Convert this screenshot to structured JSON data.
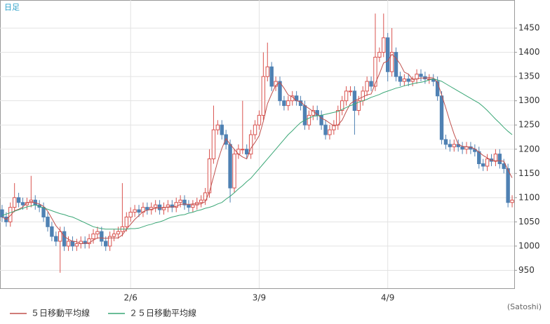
{
  "chart_data": {
    "type": "candlestick",
    "label": "日足",
    "unit_label": "(Satoshi)",
    "categories": [
      null,
      null,
      null,
      null,
      null,
      null,
      null,
      null,
      null,
      null,
      null,
      null,
      null,
      null,
      null,
      null,
      null,
      null,
      null,
      null,
      null,
      null,
      null,
      null,
      null,
      null,
      null,
      null,
      null,
      null,
      null,
      "2/6",
      null,
      null,
      null,
      null,
      null,
      null,
      null,
      null,
      null,
      null,
      null,
      null,
      null,
      null,
      null,
      null,
      null,
      null,
      null,
      null,
      null,
      null,
      null,
      null,
      null,
      null,
      null,
      null,
      null,
      null,
      "3/9",
      null,
      null,
      null,
      null,
      null,
      null,
      null,
      null,
      null,
      null,
      null,
      null,
      null,
      null,
      null,
      null,
      null,
      null,
      null,
      null,
      null,
      null,
      null,
      null,
      null,
      null,
      null,
      null,
      null,
      null,
      "4/9",
      null,
      null,
      null,
      null,
      null,
      null,
      null,
      null,
      null,
      null,
      null,
      null,
      null,
      null,
      null,
      null,
      null,
      null,
      null,
      null,
      null,
      null,
      null,
      null,
      null,
      null,
      null,
      null,
      null,
      null
    ],
    "open": [
      1075,
      1060,
      1050,
      1080,
      1100,
      1090,
      1085,
      1090,
      1095,
      1085,
      1080,
      1060,
      1040,
      1020,
      1010,
      1030,
      1000,
      1010,
      1000,
      1005,
      1010,
      1005,
      1015,
      1025,
      1030,
      1010,
      1000,
      1020,
      1025,
      1030,
      1040,
      1060,
      1070,
      1075,
      1070,
      1080,
      1075,
      1080,
      1085,
      1075,
      1080,
      1085,
      1080,
      1090,
      1095,
      1085,
      1080,
      1085,
      1090,
      1095,
      1110,
      1180,
      1240,
      1250,
      1230,
      1210,
      1120,
      1190,
      1200,
      1200,
      1190,
      1230,
      1250,
      1270,
      1350,
      1370,
      1330,
      1340,
      1300,
      1290,
      1300,
      1310,
      1300,
      1290,
      1250,
      1270,
      1280,
      1270,
      1250,
      1230,
      1240,
      1250,
      1280,
      1300,
      1320,
      1320,
      1280,
      1300,
      1320,
      1340,
      1330,
      1390,
      1400,
      1430,
      1360,
      1400,
      1350,
      1340,
      1345,
      1340,
      1345,
      1355,
      1350,
      1345,
      1345,
      1340,
      1310,
      1220,
      1210,
      1205,
      1210,
      1205,
      1200,
      1205,
      1200,
      1195,
      1170,
      1165,
      1180,
      1175,
      1190,
      1170,
      1160,
      1090
    ],
    "high": [
      1085,
      1070,
      1090,
      1130,
      1110,
      1100,
      1100,
      1145,
      1105,
      1095,
      1090,
      1070,
      1050,
      1030,
      1040,
      1040,
      1020,
      1020,
      1015,
      1020,
      1020,
      1025,
      1035,
      1040,
      1040,
      1020,
      1030,
      1035,
      1040,
      1130,
      1070,
      1080,
      1085,
      1085,
      1090,
      1090,
      1090,
      1095,
      1095,
      1090,
      1095,
      1095,
      1100,
      1105,
      1105,
      1095,
      1095,
      1100,
      1105,
      1120,
      1200,
      1290,
      1260,
      1260,
      1240,
      1220,
      1200,
      1210,
      1300,
      1210,
      1240,
      1260,
      1280,
      1400,
      1420,
      1380,
      1350,
      1350,
      1310,
      1310,
      1320,
      1320,
      1310,
      1300,
      1280,
      1290,
      1290,
      1280,
      1260,
      1250,
      1260,
      1290,
      1310,
      1330,
      1330,
      1330,
      1310,
      1330,
      1350,
      1350,
      1480,
      1410,
      1480,
      1440,
      1450,
      1410,
      1360,
      1355,
      1355,
      1350,
      1365,
      1365,
      1360,
      1355,
      1355,
      1350,
      1320,
      1230,
      1220,
      1220,
      1220,
      1215,
      1215,
      1215,
      1210,
      1205,
      1180,
      1190,
      1190,
      1200,
      1200,
      1180,
      1170,
      1105
    ],
    "low": [
      1050,
      1040,
      1040,
      1070,
      1080,
      1075,
      1075,
      1080,
      1075,
      1070,
      1050,
      1030,
      1010,
      1000,
      945,
      990,
      990,
      990,
      990,
      995,
      995,
      995,
      1005,
      1015,
      1000,
      990,
      990,
      1010,
      1015,
      1020,
      1030,
      1050,
      1060,
      1060,
      1060,
      1065,
      1065,
      1070,
      1065,
      1065,
      1070,
      1070,
      1070,
      1080,
      1075,
      1070,
      1070,
      1075,
      1080,
      1085,
      1100,
      1170,
      1230,
      1220,
      1200,
      1090,
      1110,
      1180,
      1190,
      1180,
      1180,
      1220,
      1240,
      1260,
      1340,
      1320,
      1320,
      1290,
      1280,
      1280,
      1290,
      1290,
      1280,
      1240,
      1240,
      1260,
      1260,
      1240,
      1220,
      1220,
      1230,
      1240,
      1270,
      1290,
      1310,
      1230,
      1270,
      1290,
      1310,
      1320,
      1320,
      1380,
      1390,
      1340,
      1350,
      1340,
      1330,
      1330,
      1330,
      1330,
      1335,
      1340,
      1335,
      1335,
      1330,
      1300,
      1210,
      1200,
      1195,
      1195,
      1195,
      1190,
      1190,
      1190,
      1185,
      1160,
      1155,
      1155,
      1165,
      1165,
      1160,
      1150,
      1080,
      1080
    ],
    "close": [
      1060,
      1050,
      1080,
      1100,
      1090,
      1085,
      1090,
      1095,
      1085,
      1080,
      1060,
      1040,
      1020,
      1010,
      1030,
      1000,
      1010,
      1000,
      1005,
      1010,
      1005,
      1015,
      1025,
      1030,
      1010,
      1000,
      1020,
      1025,
      1030,
      1040,
      1060,
      1070,
      1075,
      1070,
      1080,
      1075,
      1080,
      1085,
      1075,
      1080,
      1085,
      1080,
      1090,
      1095,
      1085,
      1080,
      1085,
      1090,
      1095,
      1110,
      1180,
      1240,
      1250,
      1230,
      1210,
      1120,
      1190,
      1200,
      1200,
      1190,
      1230,
      1250,
      1270,
      1350,
      1370,
      1330,
      1340,
      1300,
      1290,
      1300,
      1310,
      1300,
      1290,
      1250,
      1270,
      1280,
      1270,
      1250,
      1230,
      1240,
      1250,
      1280,
      1300,
      1320,
      1320,
      1280,
      1300,
      1320,
      1340,
      1330,
      1390,
      1400,
      1430,
      1360,
      1400,
      1350,
      1340,
      1345,
      1340,
      1345,
      1355,
      1350,
      1345,
      1345,
      1340,
      1310,
      1220,
      1210,
      1205,
      1210,
      1205,
      1200,
      1205,
      1200,
      1195,
      1170,
      1165,
      1180,
      1175,
      1190,
      1170,
      1160,
      1090,
      1095
    ],
    "up_color": "#d9534f",
    "down_color": "#4f81b3",
    "lines": [
      {
        "name": "５日移動平均線",
        "color": "#c0504d",
        "values": [
          1060,
          1055,
          1063,
          1073,
          1076,
          1081,
          1089,
          1092,
          1089,
          1087,
          1082,
          1072,
          1057,
          1042,
          1032,
          1020,
          1014,
          1010,
          1009,
          1005,
          1006,
          1007,
          1012,
          1017,
          1017,
          1016,
          1017,
          1017,
          1017,
          1023,
          1035,
          1045,
          1055,
          1063,
          1071,
          1074,
          1076,
          1078,
          1079,
          1079,
          1081,
          1081,
          1082,
          1086,
          1087,
          1086,
          1087,
          1087,
          1087,
          1092,
          1112,
          1143,
          1175,
          1202,
          1222,
          1210,
          1200,
          1190,
          1184,
          1180,
          1202,
          1214,
          1228,
          1258,
          1294,
          1314,
          1332,
          1338,
          1326,
          1312,
          1308,
          1300,
          1298,
          1290,
          1284,
          1278,
          1272,
          1264,
          1260,
          1254,
          1248,
          1250,
          1260,
          1278,
          1294,
          1300,
          1304,
          1308,
          1312,
          1314,
          1336,
          1356,
          1378,
          1382,
          1396,
          1388,
          1376,
          1359,
          1355,
          1344,
          1345,
          1347,
          1347,
          1348,
          1347,
          1338,
          1312,
          1285,
          1257,
          1231,
          1210,
          1206,
          1205,
          1204,
          1201,
          1194,
          1187,
          1182,
          1177,
          1176,
          1176,
          1175,
          1157,
          1141
        ]
      },
      {
        "name": "２５日移動平均線",
        "color": "#3aa776",
        "values": [
          1063,
          1066,
          1069,
          1072,
          1075,
          1078,
          1081,
          1083,
          1085,
          1082,
          1079,
          1076,
          1073,
          1070,
          1067,
          1065,
          1062,
          1060,
          1056,
          1052,
          1048,
          1044,
          1040,
          1038,
          1036,
          1035,
          1035,
          1035,
          1035,
          1035,
          1035,
          1036,
          1036,
          1037,
          1040,
          1043,
          1045,
          1048,
          1050,
          1053,
          1057,
          1060,
          1062,
          1064,
          1065,
          1068,
          1070,
          1073,
          1075,
          1078,
          1080,
          1083,
          1087,
          1090,
          1097,
          1103,
          1110,
          1118,
          1125,
          1133,
          1140,
          1150,
          1160,
          1170,
          1180,
          1190,
          1200,
          1210,
          1220,
          1230,
          1238,
          1247,
          1255,
          1260,
          1264,
          1268,
          1269,
          1270,
          1272,
          1274,
          1276,
          1278,
          1282,
          1286,
          1290,
          1293,
          1297,
          1300,
          1303,
          1307,
          1310,
          1313,
          1317,
          1320,
          1323,
          1326,
          1328,
          1331,
          1333,
          1335,
          1337,
          1338,
          1340,
          1343,
          1345,
          1343,
          1340,
          1335,
          1330,
          1325,
          1320,
          1315,
          1310,
          1305,
          1300,
          1295,
          1288,
          1280,
          1271,
          1262,
          1254,
          1245,
          1237,
          1230
        ]
      }
    ],
    "ylim": [
      913,
      1508
    ],
    "yticks": [
      950,
      1000,
      1050,
      1100,
      1150,
      1200,
      1250,
      1300,
      1350,
      1400,
      1450
    ],
    "grid": true
  }
}
